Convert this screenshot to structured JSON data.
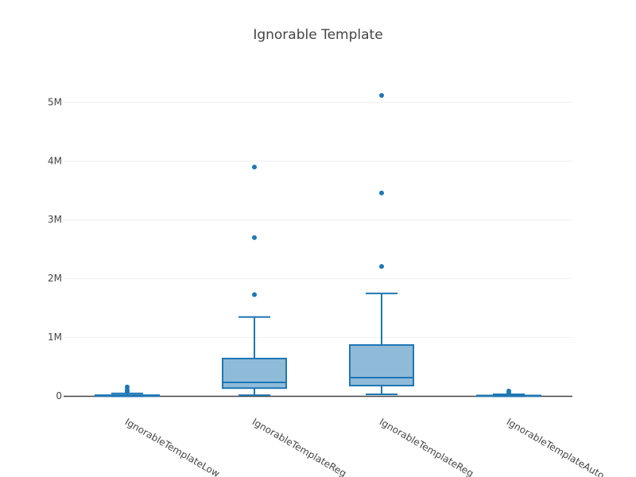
{
  "chart_data": {
    "type": "box",
    "title": "Ignorable Template",
    "categories": [
      "IgnorableTemplateLow",
      "IgnorableTemplateReg",
      "IgnorableTemplateReg",
      "IgnorableTemplateAuto"
    ],
    "color": "#1f77b4",
    "boxes": [
      {
        "min": 0,
        "q1": 5000,
        "median": 10000,
        "q3": 20000,
        "max": 50000,
        "outliers": [
          80000,
          110000,
          160000
        ]
      },
      {
        "min": 20000,
        "q1": 140000,
        "median": 237000,
        "q3": 643000,
        "max": 1350000,
        "outliers": [
          1730000,
          2700000,
          3900000
        ]
      },
      {
        "min": 34000,
        "q1": 183000,
        "median": 318000,
        "q3": 873000,
        "max": 1750000,
        "outliers": [
          2210000,
          3460000,
          5120000
        ]
      },
      {
        "min": 0,
        "q1": 5000,
        "median": 10000,
        "q3": 15000,
        "max": 35000,
        "outliers": [
          60000,
          90000
        ]
      }
    ],
    "ylim": [
      -290000,
      5390000
    ],
    "yticks": [
      0,
      {
        "value": 1000000,
        "label": "1M"
      },
      {
        "value": 2000000,
        "label": "2M"
      },
      {
        "value": 3000000,
        "label": "3M"
      },
      {
        "value": 4000000,
        "label": "4M"
      },
      {
        "value": 5000000,
        "label": "5M"
      }
    ],
    "grid": true
  }
}
